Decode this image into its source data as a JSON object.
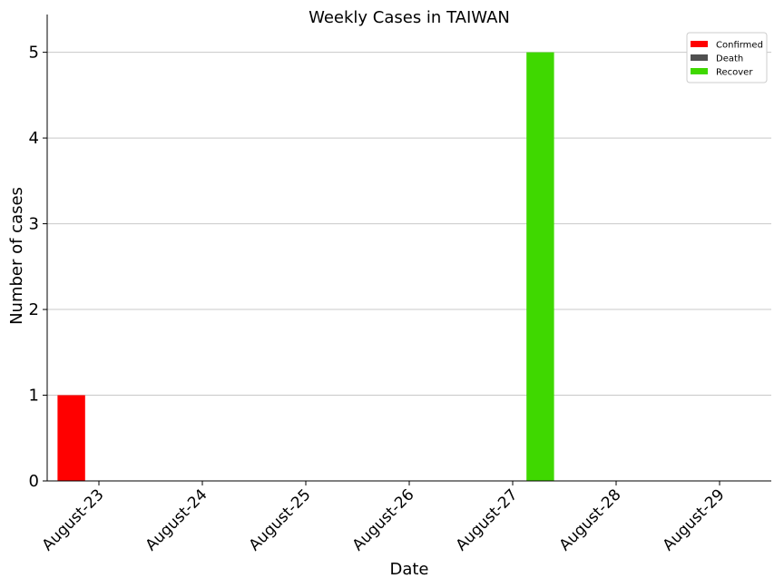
{
  "chart_data": {
    "type": "bar",
    "title": "Weekly Cases in TAIWAN",
    "xlabel": "Date",
    "ylabel": "Number of cases",
    "categories": [
      "August-23",
      "August-24",
      "August-25",
      "August-26",
      "August-27",
      "August-28",
      "August-29"
    ],
    "series": [
      {
        "name": "Confirmed",
        "color": "#ff0000",
        "values": [
          1,
          0,
          0,
          0,
          0,
          0,
          0
        ]
      },
      {
        "name": "Death",
        "color": "#505050",
        "values": [
          0,
          0,
          0,
          0,
          0,
          0,
          0
        ]
      },
      {
        "name": "Recover",
        "color": "#3fd800",
        "values": [
          0,
          0,
          0,
          0,
          5,
          0,
          0
        ]
      }
    ],
    "ylim": [
      0,
      5.25
    ],
    "yticks": [
      0,
      1,
      2,
      3,
      4,
      5
    ],
    "grid": "horizontal",
    "legend_position": "top-right"
  }
}
